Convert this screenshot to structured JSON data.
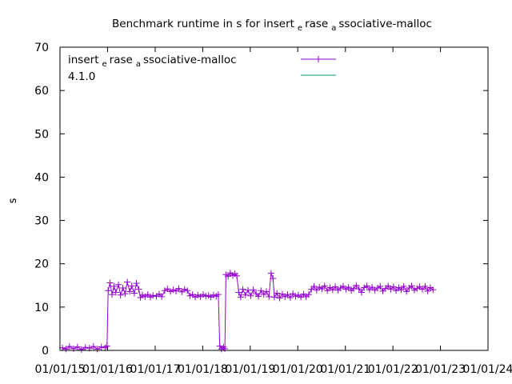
{
  "chart_data": {
    "type": "line",
    "title": {
      "main": "Benchmark runtime in s for insert",
      "sub1": "e",
      "mid": "rase",
      "sub2": "a",
      "tail": "ssociative-malloc"
    },
    "xlabel": "",
    "ylabel": "s",
    "ylim": [
      0,
      70
    ],
    "yticks": [
      0,
      10,
      20,
      30,
      40,
      50,
      60,
      70
    ],
    "xlim": [
      "2015-01-01",
      "2024-01-01"
    ],
    "xticks": [
      {
        "date": "2015-01-01",
        "label": "01/01/15"
      },
      {
        "date": "2016-01-01",
        "label": "01/01/16"
      },
      {
        "date": "2017-01-01",
        "label": "01/01/17"
      },
      {
        "date": "2018-01-01",
        "label": "01/01/18"
      },
      {
        "date": "2019-01-01",
        "label": "01/01/19"
      },
      {
        "date": "2020-01-01",
        "label": "01/01/20"
      },
      {
        "date": "2021-01-01",
        "label": "01/01/21"
      },
      {
        "date": "2022-01-01",
        "label": "01/01/22"
      },
      {
        "date": "2023-01-01",
        "label": "01/01/23"
      },
      {
        "date": "2024-01-01",
        "label": "01/01/24"
      }
    ],
    "legend_position": "top-left",
    "series": [
      {
        "name_parts": [
          "insert",
          "e",
          "rase",
          "a",
          "ssociative-malloc"
        ],
        "color": "#9400d3",
        "marker": "plus",
        "points": [
          [
            "2015-01-20",
            0.6
          ],
          [
            "2015-02-15",
            0.3
          ],
          [
            "2015-03-15",
            0.9
          ],
          [
            "2015-04-15",
            0.4
          ],
          [
            "2015-05-15",
            0.8
          ],
          [
            "2015-06-15",
            0.2
          ],
          [
            "2015-07-15",
            0.7
          ],
          [
            "2015-08-15",
            0.5
          ],
          [
            "2015-09-15",
            0.9
          ],
          [
            "2015-10-15",
            0.3
          ],
          [
            "2015-11-15",
            0.8
          ],
          [
            "2015-12-15",
            0.6
          ],
          [
            "2015-12-28",
            1.0
          ],
          [
            "2016-01-06",
            13.8
          ],
          [
            "2016-01-20",
            15.6
          ],
          [
            "2016-02-05",
            12.9
          ],
          [
            "2016-02-20",
            14.8
          ],
          [
            "2016-03-05",
            13.4
          ],
          [
            "2016-03-25",
            15.2
          ],
          [
            "2016-04-10",
            12.8
          ],
          [
            "2016-04-28",
            14.4
          ],
          [
            "2016-05-15",
            13.1
          ],
          [
            "2016-06-01",
            15.8
          ],
          [
            "2016-06-20",
            13.6
          ],
          [
            "2016-07-05",
            14.9
          ],
          [
            "2016-07-25",
            13.2
          ],
          [
            "2016-08-10",
            15.5
          ],
          [
            "2016-08-28",
            14.1
          ],
          [
            "2016-09-10",
            12.2
          ],
          [
            "2016-09-25",
            12.8
          ],
          [
            "2016-10-15",
            12.4
          ],
          [
            "2016-11-05",
            12.9
          ],
          [
            "2016-11-25",
            12.3
          ],
          [
            "2016-12-15",
            12.7
          ],
          [
            "2017-01-10",
            12.5
          ],
          [
            "2017-02-01",
            13.0
          ],
          [
            "2017-02-20",
            12.4
          ],
          [
            "2017-03-15",
            13.8
          ],
          [
            "2017-04-05",
            14.2
          ],
          [
            "2017-04-28",
            13.6
          ],
          [
            "2017-05-20",
            14.0
          ],
          [
            "2017-06-10",
            13.7
          ],
          [
            "2017-07-01",
            14.3
          ],
          [
            "2017-07-25",
            13.5
          ],
          [
            "2017-08-15",
            14.1
          ],
          [
            "2017-09-05",
            13.8
          ],
          [
            "2017-09-25",
            12.6
          ],
          [
            "2017-10-15",
            12.9
          ],
          [
            "2017-11-05",
            12.3
          ],
          [
            "2017-11-25",
            12.8
          ],
          [
            "2017-12-15",
            12.4
          ],
          [
            "2018-01-05",
            12.9
          ],
          [
            "2018-01-25",
            12.5
          ],
          [
            "2018-02-15",
            12.7
          ],
          [
            "2018-03-05",
            12.3
          ],
          [
            "2018-03-25",
            12.8
          ],
          [
            "2018-04-15",
            12.5
          ],
          [
            "2018-05-01",
            12.9
          ],
          [
            "2018-05-12",
            1.0
          ],
          [
            "2018-05-25",
            0.3
          ],
          [
            "2018-06-10",
            0.8
          ],
          [
            "2018-06-20",
            0.4
          ],
          [
            "2018-06-28",
            17.5
          ],
          [
            "2018-07-15",
            17.1
          ],
          [
            "2018-08-01",
            17.9
          ],
          [
            "2018-08-20",
            17.3
          ],
          [
            "2018-09-05",
            17.7
          ],
          [
            "2018-09-20",
            17.2
          ],
          [
            "2018-10-05",
            13.4
          ],
          [
            "2018-10-20",
            12.3
          ],
          [
            "2018-11-05",
            14.1
          ],
          [
            "2018-11-25",
            12.8
          ],
          [
            "2018-12-15",
            13.9
          ],
          [
            "2019-01-05",
            12.6
          ],
          [
            "2019-01-25",
            14.0
          ],
          [
            "2019-02-15",
            13.1
          ],
          [
            "2019-03-05",
            12.5
          ],
          [
            "2019-03-25",
            13.8
          ],
          [
            "2019-04-15",
            12.9
          ],
          [
            "2019-05-05",
            13.6
          ],
          [
            "2019-05-25",
            12.4
          ],
          [
            "2019-06-10",
            17.8
          ],
          [
            "2019-06-25",
            16.6
          ],
          [
            "2019-07-05",
            12.3
          ],
          [
            "2019-07-25",
            13.2
          ],
          [
            "2019-08-15",
            12.1
          ],
          [
            "2019-09-05",
            13.0
          ],
          [
            "2019-09-25",
            12.4
          ],
          [
            "2019-10-15",
            12.9
          ],
          [
            "2019-11-05",
            12.2
          ],
          [
            "2019-11-25",
            13.1
          ],
          [
            "2019-12-15",
            12.5
          ],
          [
            "2020-01-05",
            12.8
          ],
          [
            "2020-01-25",
            12.3
          ],
          [
            "2020-02-15",
            13.0
          ],
          [
            "2020-03-05",
            12.4
          ],
          [
            "2020-03-25",
            12.9
          ],
          [
            "2020-04-15",
            14.1
          ],
          [
            "2020-05-05",
            14.8
          ],
          [
            "2020-05-25",
            13.9
          ],
          [
            "2020-06-15",
            14.6
          ],
          [
            "2020-07-05",
            14.2
          ],
          [
            "2020-07-25",
            14.9
          ],
          [
            "2020-08-15",
            13.8
          ],
          [
            "2020-09-05",
            14.5
          ],
          [
            "2020-09-25",
            14.0
          ],
          [
            "2020-10-15",
            14.7
          ],
          [
            "2020-11-05",
            13.9
          ],
          [
            "2020-11-25",
            14.4
          ],
          [
            "2020-12-15",
            14.8
          ],
          [
            "2021-01-05",
            14.1
          ],
          [
            "2021-01-25",
            14.6
          ],
          [
            "2021-02-15",
            13.8
          ],
          [
            "2021-03-05",
            14.3
          ],
          [
            "2021-03-25",
            15.0
          ],
          [
            "2021-04-15",
            14.2
          ],
          [
            "2021-05-05",
            13.4
          ],
          [
            "2021-05-25",
            14.5
          ],
          [
            "2021-06-15",
            14.9
          ],
          [
            "2021-07-05",
            14.0
          ],
          [
            "2021-07-25",
            14.6
          ],
          [
            "2021-08-15",
            13.9
          ],
          [
            "2021-09-05",
            14.4
          ],
          [
            "2021-09-25",
            14.8
          ],
          [
            "2021-10-15",
            13.7
          ],
          [
            "2021-11-05",
            14.3
          ],
          [
            "2021-11-25",
            14.9
          ],
          [
            "2021-12-15",
            14.1
          ],
          [
            "2022-01-05",
            14.7
          ],
          [
            "2022-01-25",
            13.8
          ],
          [
            "2022-02-15",
            14.5
          ],
          [
            "2022-03-05",
            14.0
          ],
          [
            "2022-03-25",
            14.8
          ],
          [
            "2022-04-15",
            13.6
          ],
          [
            "2022-05-05",
            14.4
          ],
          [
            "2022-05-25",
            14.9
          ],
          [
            "2022-06-15",
            13.9
          ],
          [
            "2022-07-05",
            14.3
          ],
          [
            "2022-07-25",
            14.7
          ],
          [
            "2022-08-15",
            14.1
          ],
          [
            "2022-09-05",
            14.8
          ],
          [
            "2022-09-25",
            13.7
          ],
          [
            "2022-10-15",
            14.5
          ],
          [
            "2022-11-05",
            14.0
          ]
        ]
      },
      {
        "name": "4.1.0",
        "color": "#009e73",
        "marker": "none",
        "points": []
      }
    ]
  }
}
